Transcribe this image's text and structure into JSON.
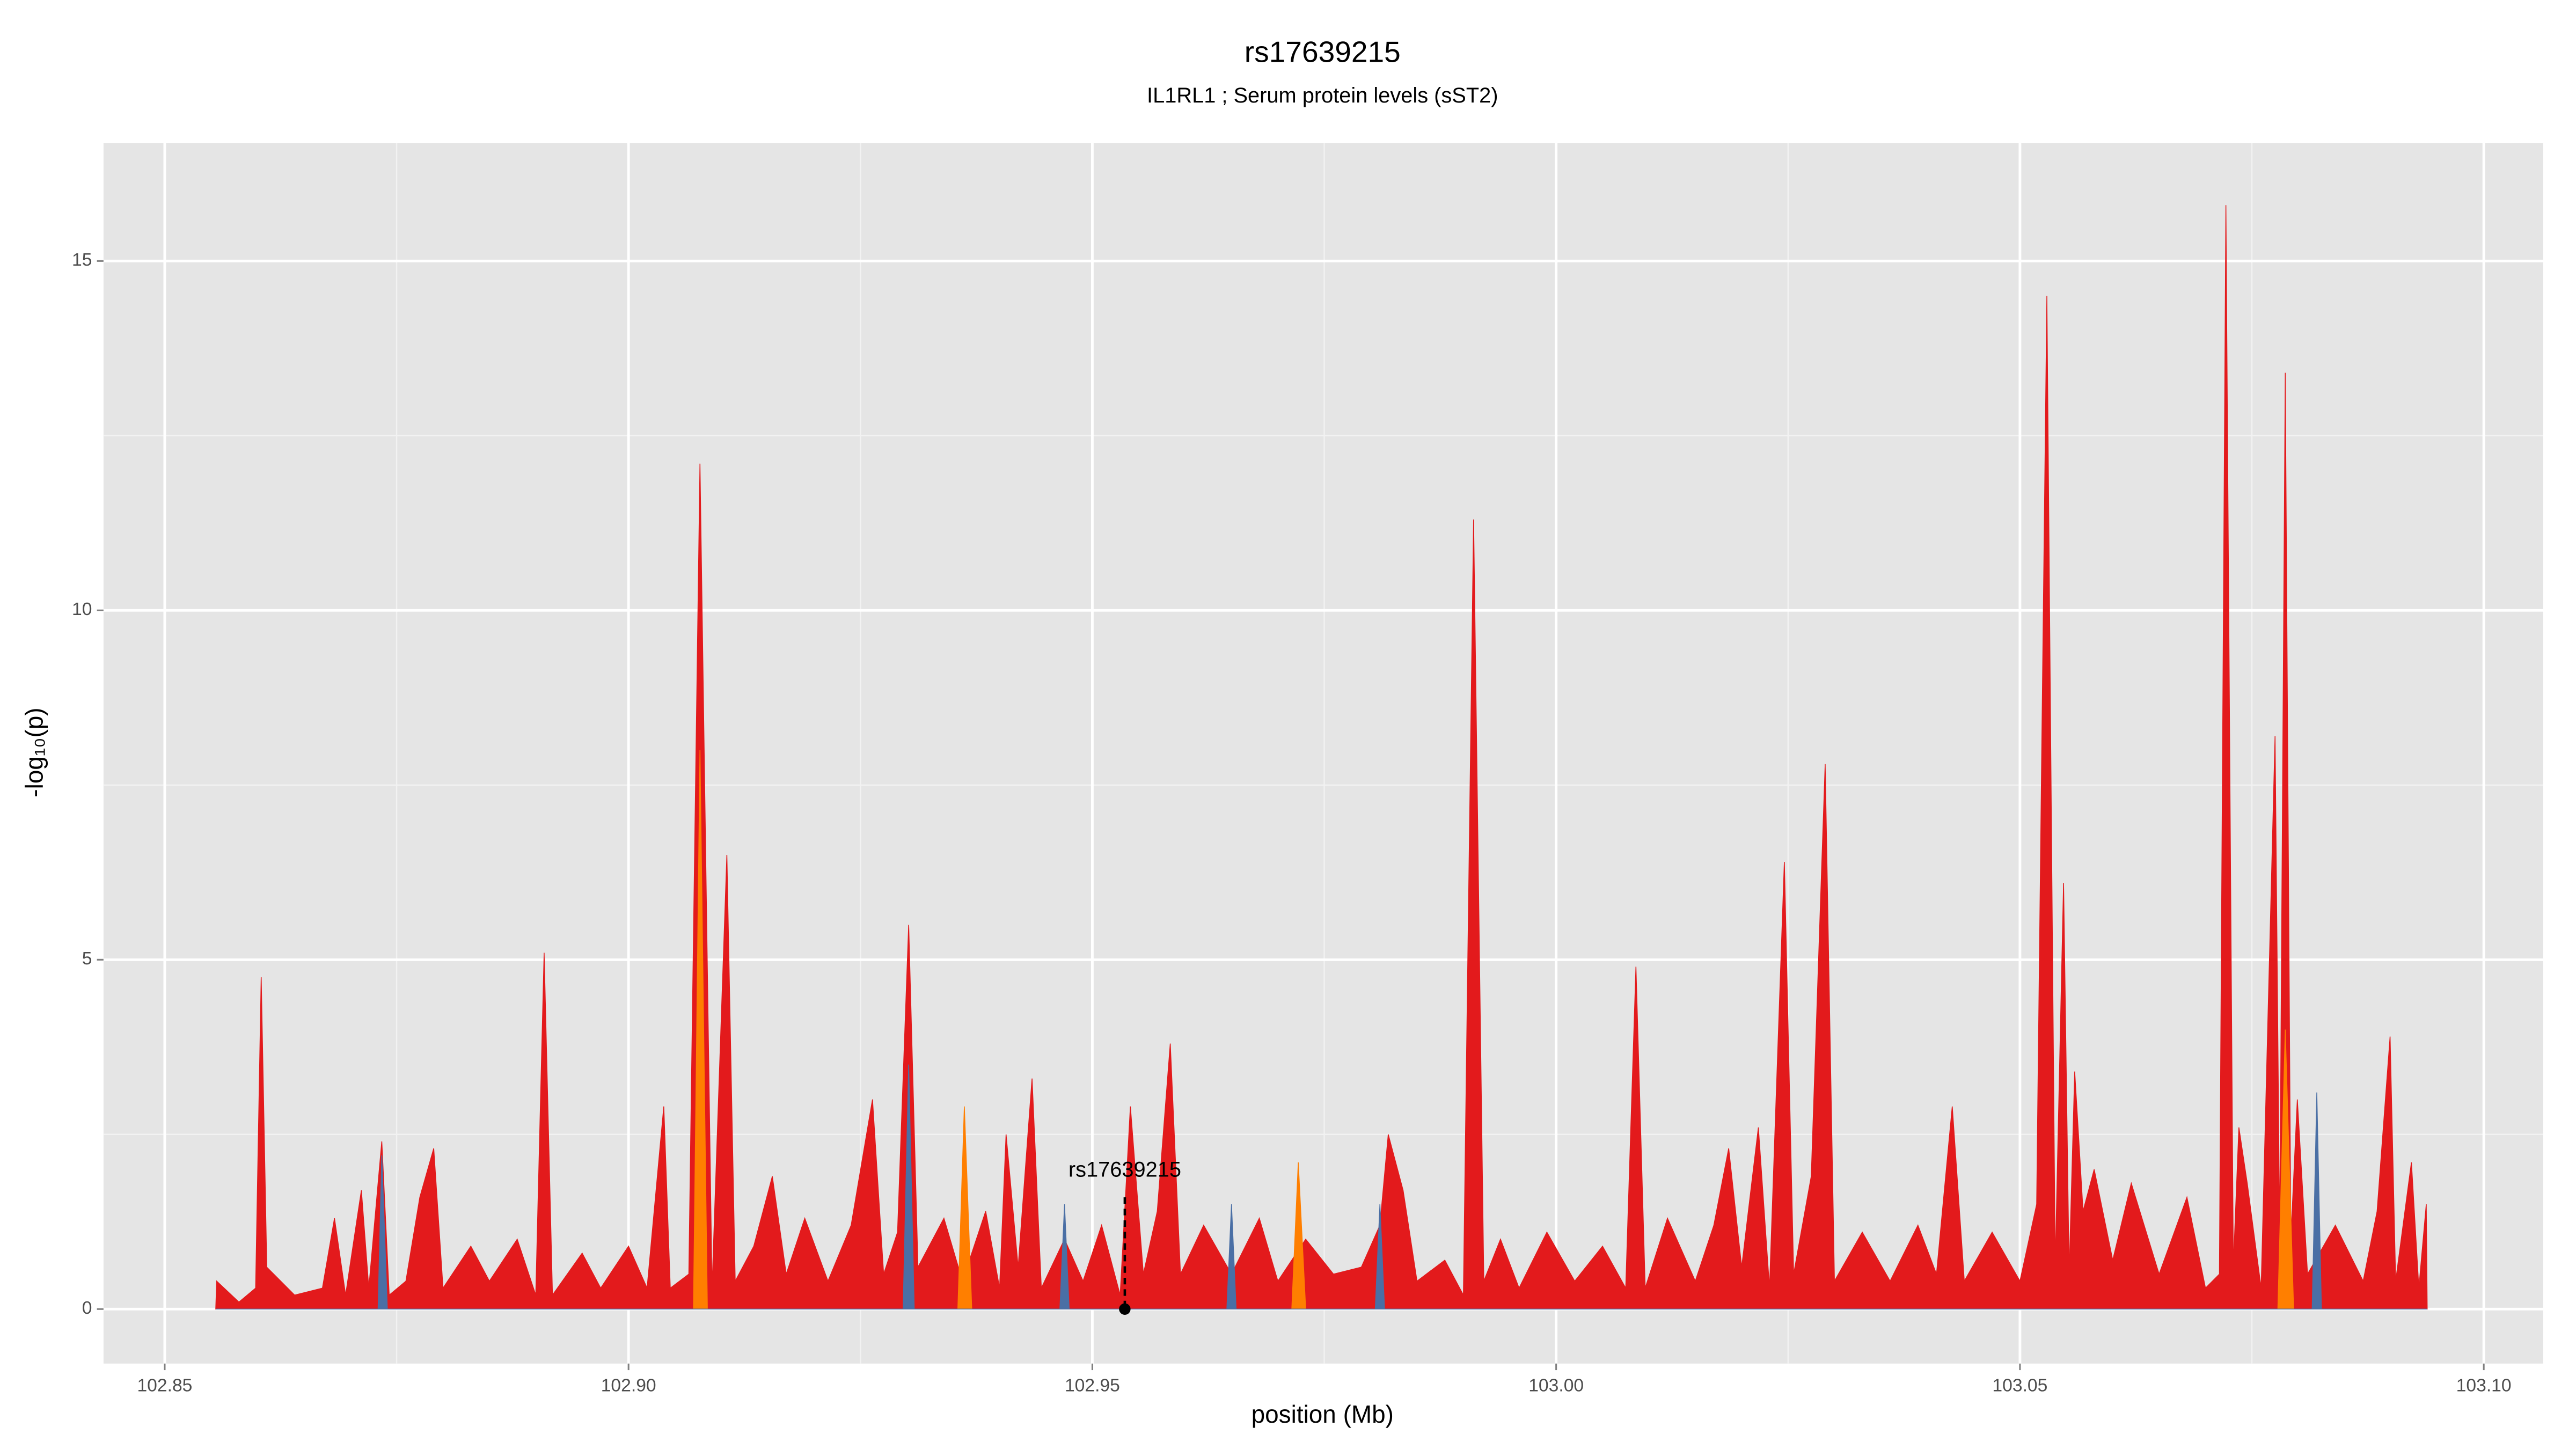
{
  "chart_data": {
    "type": "area",
    "title": "rs17639215",
    "subtitle": "IL1RL1 ; Serum protein levels (sST2)",
    "xlabel": "position (Mb)",
    "ylabel": "-log₁₀(p)",
    "xlim": [
      102.8434,
      103.1064
    ],
    "ylim": [
      -0.78,
      16.69
    ],
    "xticks": [
      {
        "value": 102.85,
        "label": "102.85"
      },
      {
        "value": 102.9,
        "label": "102.90"
      },
      {
        "value": 102.95,
        "label": "102.95"
      },
      {
        "value": 103.0,
        "label": "103.00"
      },
      {
        "value": 103.05,
        "label": "103.05"
      },
      {
        "value": 103.1,
        "label": "103.10"
      }
    ],
    "yticks": [
      0,
      5,
      10,
      15
    ],
    "xminorticks": [
      102.875,
      102.925,
      102.975,
      103.025,
      103.075
    ],
    "yminorticks": [
      2.5,
      7.5,
      12.5
    ],
    "grid": true,
    "series": [
      {
        "color": "#e31a1c",
        "x": [
          102.8555,
          102.8556,
          102.858,
          102.8598,
          102.8604,
          102.861,
          102.864,
          102.867,
          102.8683,
          102.8695,
          102.8712,
          102.872,
          102.8734,
          102.8742,
          102.876,
          102.8775,
          102.879,
          102.88,
          102.883,
          102.885,
          102.888,
          102.89,
          102.8909,
          102.8918,
          102.895,
          102.897,
          102.9,
          102.902,
          102.9038,
          102.9045,
          102.9065,
          102.9077,
          102.909,
          102.9106,
          102.9115,
          102.9135,
          102.9155,
          102.917,
          102.919,
          102.9215,
          102.924,
          102.9263,
          102.9275,
          102.929,
          102.9302,
          102.9312,
          102.934,
          102.936,
          102.9385,
          102.94,
          102.9407,
          102.942,
          102.9435,
          102.9445,
          102.947,
          102.949,
          102.951,
          102.953,
          102.9541,
          102.9555,
          102.957,
          102.9584,
          102.9595,
          102.962,
          102.965,
          102.968,
          102.97,
          102.973,
          102.976,
          102.979,
          102.981,
          102.9819,
          102.9835,
          102.985,
          102.988,
          102.99,
          102.9911,
          102.9922,
          102.994,
          102.996,
          102.999,
          103.002,
          103.005,
          103.0075,
          103.0086,
          103.0096,
          103.012,
          103.015,
          103.017,
          103.0186,
          103.02,
          103.0218,
          103.023,
          103.0246,
          103.0256,
          103.0275,
          103.029,
          103.03,
          103.033,
          103.036,
          103.039,
          103.041,
          103.0427,
          103.044,
          103.047,
          103.05,
          103.0518,
          103.0529,
          103.0538,
          103.0547,
          103.0553,
          103.0559,
          103.0568,
          103.058,
          103.06,
          103.062,
          103.065,
          103.068,
          103.07,
          103.0715,
          103.0722,
          103.073,
          103.0736,
          103.0745,
          103.076,
          103.0775,
          103.078,
          103.0786,
          103.0792,
          103.0799,
          103.081,
          103.084,
          103.087,
          103.0885,
          103.0899,
          103.0905,
          103.0922,
          103.093,
          103.0938,
          103.0939
        ],
        "values": [
          0,
          0.4,
          0.1,
          0.3,
          4.75,
          0.6,
          0.2,
          0.3,
          1.3,
          0.2,
          1.7,
          0.3,
          2.4,
          0.2,
          0.4,
          1.6,
          2.3,
          0.3,
          0.9,
          0.4,
          1.0,
          0.2,
          5.1,
          0.2,
          0.8,
          0.3,
          0.9,
          0.3,
          2.9,
          0.3,
          0.5,
          12.1,
          0.3,
          6.5,
          0.4,
          0.9,
          1.9,
          0.5,
          1.3,
          0.4,
          1.2,
          3.0,
          0.5,
          1.1,
          5.5,
          0.6,
          1.3,
          0.4,
          1.4,
          0.3,
          2.5,
          0.6,
          3.3,
          0.3,
          1.0,
          0.4,
          1.2,
          0.2,
          2.9,
          0.5,
          1.4,
          3.8,
          0.5,
          1.2,
          0.5,
          1.3,
          0.4,
          1.0,
          0.5,
          0.6,
          1.2,
          2.5,
          1.7,
          0.4,
          0.7,
          0.2,
          11.3,
          0.4,
          1.0,
          0.3,
          1.1,
          0.4,
          0.9,
          0.3,
          4.9,
          0.3,
          1.3,
          0.4,
          1.2,
          2.3,
          0.6,
          2.6,
          0.3,
          6.4,
          0.5,
          1.9,
          7.8,
          0.4,
          1.1,
          0.4,
          1.2,
          0.5,
          2.9,
          0.4,
          1.1,
          0.4,
          1.5,
          14.5,
          0.6,
          6.1,
          0.5,
          3.4,
          1.4,
          2.0,
          0.7,
          1.8,
          0.5,
          1.6,
          0.3,
          0.5,
          15.8,
          0.6,
          2.6,
          1.8,
          0.3,
          8.2,
          1.0,
          13.4,
          1.0,
          3.0,
          0.5,
          1.2,
          0.4,
          1.4,
          3.9,
          0.4,
          2.1,
          0.3,
          1.5,
          0
        ]
      },
      {
        "color": "#ff7f00",
        "x": [
          102.8555,
          102.907,
          102.9077,
          102.9085,
          102.9355,
          102.9362,
          102.937,
          102.9715,
          102.9722,
          102.973,
          103.0778,
          103.0786,
          103.0795,
          103.0939
        ],
        "values": [
          0,
          0,
          8.0,
          0,
          0,
          2.9,
          0,
          0,
          2.1,
          0,
          0,
          4.0,
          0,
          0
        ]
      },
      {
        "color": "#4a6fa5",
        "x": [
          102.8555,
          102.873,
          102.8734,
          102.874,
          102.9296,
          102.9302,
          102.9308,
          102.9465,
          102.947,
          102.9475,
          102.9645,
          102.965,
          102.9655,
          102.9805,
          102.981,
          102.9815,
          103.0815,
          103.082,
          103.0825,
          103.0939
        ],
        "values": [
          0,
          0,
          2.2,
          0,
          0,
          3.5,
          0,
          0,
          1.5,
          0,
          0,
          1.5,
          0,
          0,
          1.5,
          0,
          0,
          3.1,
          0,
          0
        ]
      }
    ],
    "annotation": {
      "label": "rs17639215",
      "x": 102.9535,
      "y": 0,
      "line_top": 1.6
    }
  }
}
